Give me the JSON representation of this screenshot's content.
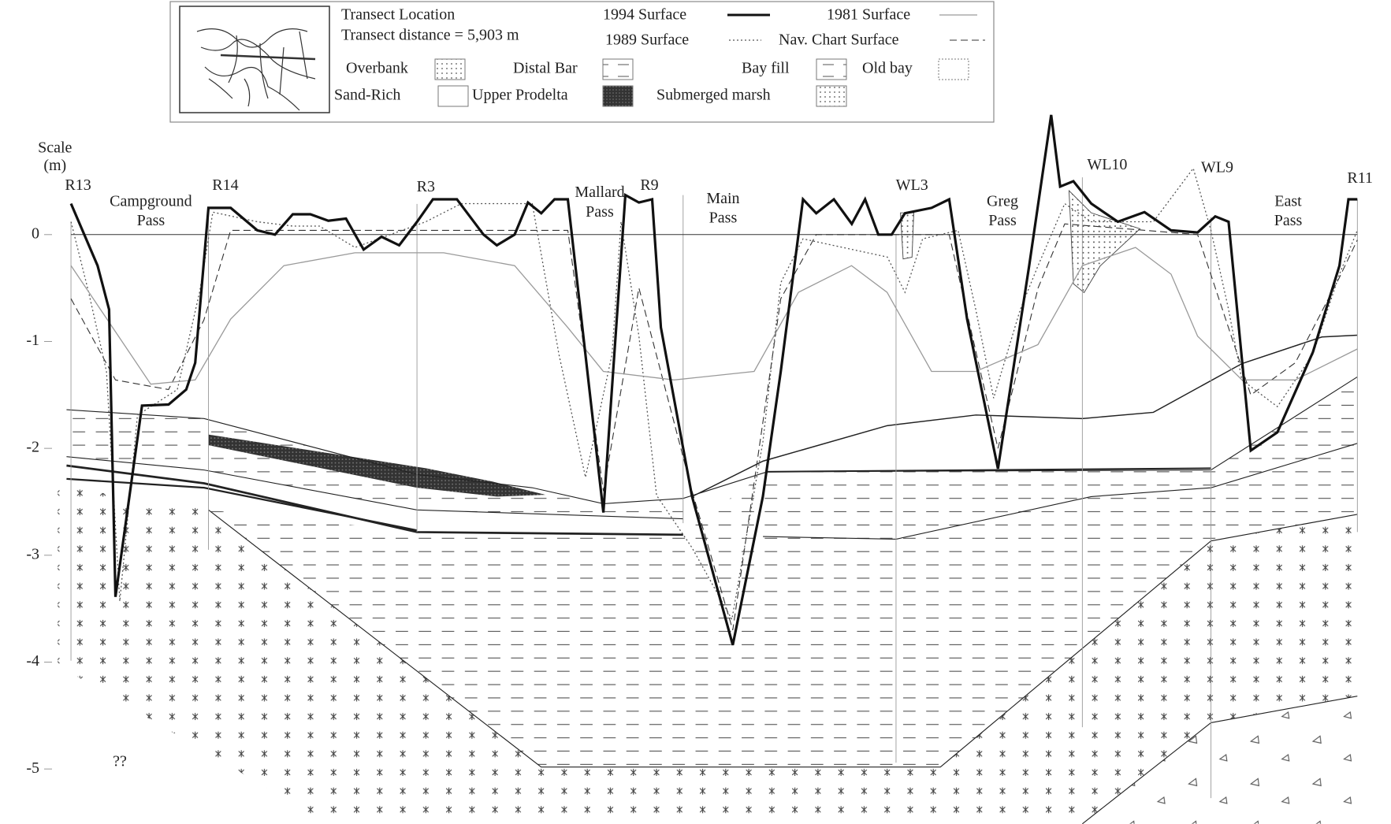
{
  "chart_data": {
    "type": "line",
    "y_label": [
      "Scale",
      "(m)"
    ],
    "legend_info": {
      "title": "Transect Location",
      "distance": "Transect distance = 5,903 m"
    },
    "xlim": [
      0,
      5903
    ],
    "ylim": [
      -5.5,
      1.2
    ],
    "yticks": [
      0,
      -1,
      -2,
      -3,
      -4,
      -5
    ],
    "series": [
      {
        "name": "1994 Surface",
        "color": "#111111",
        "style": "solid",
        "width": 3.2,
        "x": [
          0,
          122,
          175,
          204,
          326,
          448,
          529,
          570,
          631,
          733,
          855,
          936,
          1018,
          1099,
          1181,
          1262,
          1343,
          1425,
          1506,
          1588,
          1661,
          1771,
          1893,
          1954,
          2036,
          2097,
          2158,
          2219,
          2280,
          2443,
          2544,
          2606,
          2667,
          2707,
          2850,
          3037,
          3175,
          3257,
          3359,
          3420,
          3501,
          3583,
          3644,
          3705,
          3766,
          3827,
          3949,
          4030,
          4112,
          4254,
          4397,
          4498,
          4539,
          4600,
          4682,
          4804,
          4926,
          5048,
          5170,
          5251,
          5312,
          5414,
          5536,
          5699,
          5821,
          5862,
          5903
        ],
        "values": [
          0.29,
          -0.29,
          -0.7,
          -3.39,
          -1.6,
          -1.59,
          -1.45,
          -1.2,
          0.25,
          0.25,
          0.04,
          0,
          0.19,
          0.19,
          0.13,
          0.15,
          -0.14,
          -0.02,
          -0.1,
          0.12,
          0.33,
          0.33,
          0,
          -0.1,
          0,
          0.3,
          0.2,
          0.33,
          0.33,
          -2.6,
          0.37,
          0.3,
          0.33,
          -0.87,
          -2.45,
          -3.84,
          -2.45,
          -1.28,
          0.33,
          0.2,
          0.33,
          0.1,
          0.33,
          0,
          0,
          0.2,
          0.25,
          0.33,
          -0.79,
          -2.19,
          -0.29,
          1.12,
          0.45,
          0.5,
          0.29,
          0.12,
          0.21,
          0.04,
          0.02,
          0.17,
          0.12,
          -2.02,
          -1.85,
          -1.1,
          -0.29,
          0.33,
          0.33
        ]
      },
      {
        "name": "1981 Surface",
        "color": "#9a9a9a",
        "style": "solid",
        "width": 1.3,
        "x": [
          0,
          366,
          570,
          733,
          977,
          1303,
          1710,
          2036,
          2280,
          2443,
          2768,
          3135,
          3338,
          3582,
          3745,
          3949,
          4152,
          4437,
          4641,
          4885,
          5048,
          5170,
          5374,
          5618,
          5903
        ],
        "values": [
          -0.29,
          -1.4,
          -1.36,
          -0.79,
          -0.29,
          -0.17,
          -0.17,
          -0.29,
          -0.87,
          -1.28,
          -1.36,
          -1.28,
          -0.54,
          -0.29,
          -0.54,
          -1.28,
          -1.28,
          -1.03,
          -0.29,
          -0.12,
          -0.37,
          -0.95,
          -1.36,
          -1.36,
          -1.07
        ]
      },
      {
        "name": "1989 Surface",
        "color": "#555555",
        "style": "dotted",
        "width": 1.3,
        "x": [
          0,
          81,
          163,
          224,
          305,
          488,
          590,
          651,
          855,
          1018,
          1140,
          1303,
          1628,
          1791,
          2117,
          2239,
          2361,
          2483,
          2524,
          2606,
          2687,
          2850,
          3033,
          3175,
          3257,
          3359,
          3746,
          3827,
          3908,
          4071,
          4152,
          4234,
          4356,
          4438,
          4560,
          4682,
          4967,
          5150,
          5231,
          5312,
          5373,
          5536,
          5699,
          5821,
          5903
        ],
        "values": [
          0.12,
          -0.54,
          -1.28,
          -3.43,
          -1.69,
          -1.45,
          -0.54,
          0.21,
          0.12,
          0.08,
          0.08,
          -0.12,
          0.12,
          0.29,
          0.29,
          -1.12,
          -2.27,
          -1.12,
          0.12,
          -0.95,
          -2.44,
          -2.93,
          -3.6,
          -1.94,
          -0.45,
          -0.04,
          -0.21,
          -0.54,
          -0.04,
          0.04,
          -0.7,
          -1.53,
          -0.7,
          -0.29,
          0.29,
          0.12,
          0.12,
          0.62,
          0.04,
          -0.7,
          -1.36,
          -1.61,
          -1.12,
          -0.37,
          0.04
        ]
      },
      {
        "name": "Nav. Chart Surface",
        "color": "#333333",
        "style": "dashed",
        "width": 1.1,
        "x": [
          0,
          204,
          448,
          610,
          733,
          2280,
          2443,
          2606,
          2850,
          3037,
          3257,
          3420,
          4030,
          4254,
          4438,
          4560,
          5170,
          5414,
          5618,
          5821,
          5903
        ],
        "values": [
          -0.6,
          -1.36,
          -1.45,
          -0.8,
          0.04,
          0.04,
          -2.4,
          -0.5,
          -2.4,
          -3.7,
          -0.6,
          0,
          0,
          -2,
          -0.5,
          0.1,
          0,
          -1.5,
          -1.2,
          -0.4,
          -0.05
        ]
      }
    ],
    "units": [
      "Overbank",
      "Distal Bar",
      "Bay fill",
      "Old bay",
      "Sand-Rich",
      "Upper Prodelta",
      "Submerged marsh"
    ],
    "annotations": [
      {
        "lines": [
          "R13"
        ]
      },
      {
        "lines": [
          "Campground",
          "Pass"
        ]
      },
      {
        "lines": [
          "R14"
        ]
      },
      {
        "lines": [
          "R3"
        ]
      },
      {
        "lines": [
          "Mallard",
          "Pass"
        ]
      },
      {
        "lines": [
          "R9"
        ]
      },
      {
        "lines": [
          "Main",
          "Pass"
        ]
      },
      {
        "lines": [
          "WL3"
        ]
      },
      {
        "lines": [
          "Greg",
          "Pass"
        ]
      },
      {
        "lines": [
          "WL10"
        ]
      },
      {
        "lines": [
          "WL9"
        ]
      },
      {
        "lines": [
          "East",
          "Pass"
        ]
      },
      {
        "lines": [
          "R11"
        ]
      },
      {
        "lines": [
          "??"
        ]
      }
    ]
  }
}
